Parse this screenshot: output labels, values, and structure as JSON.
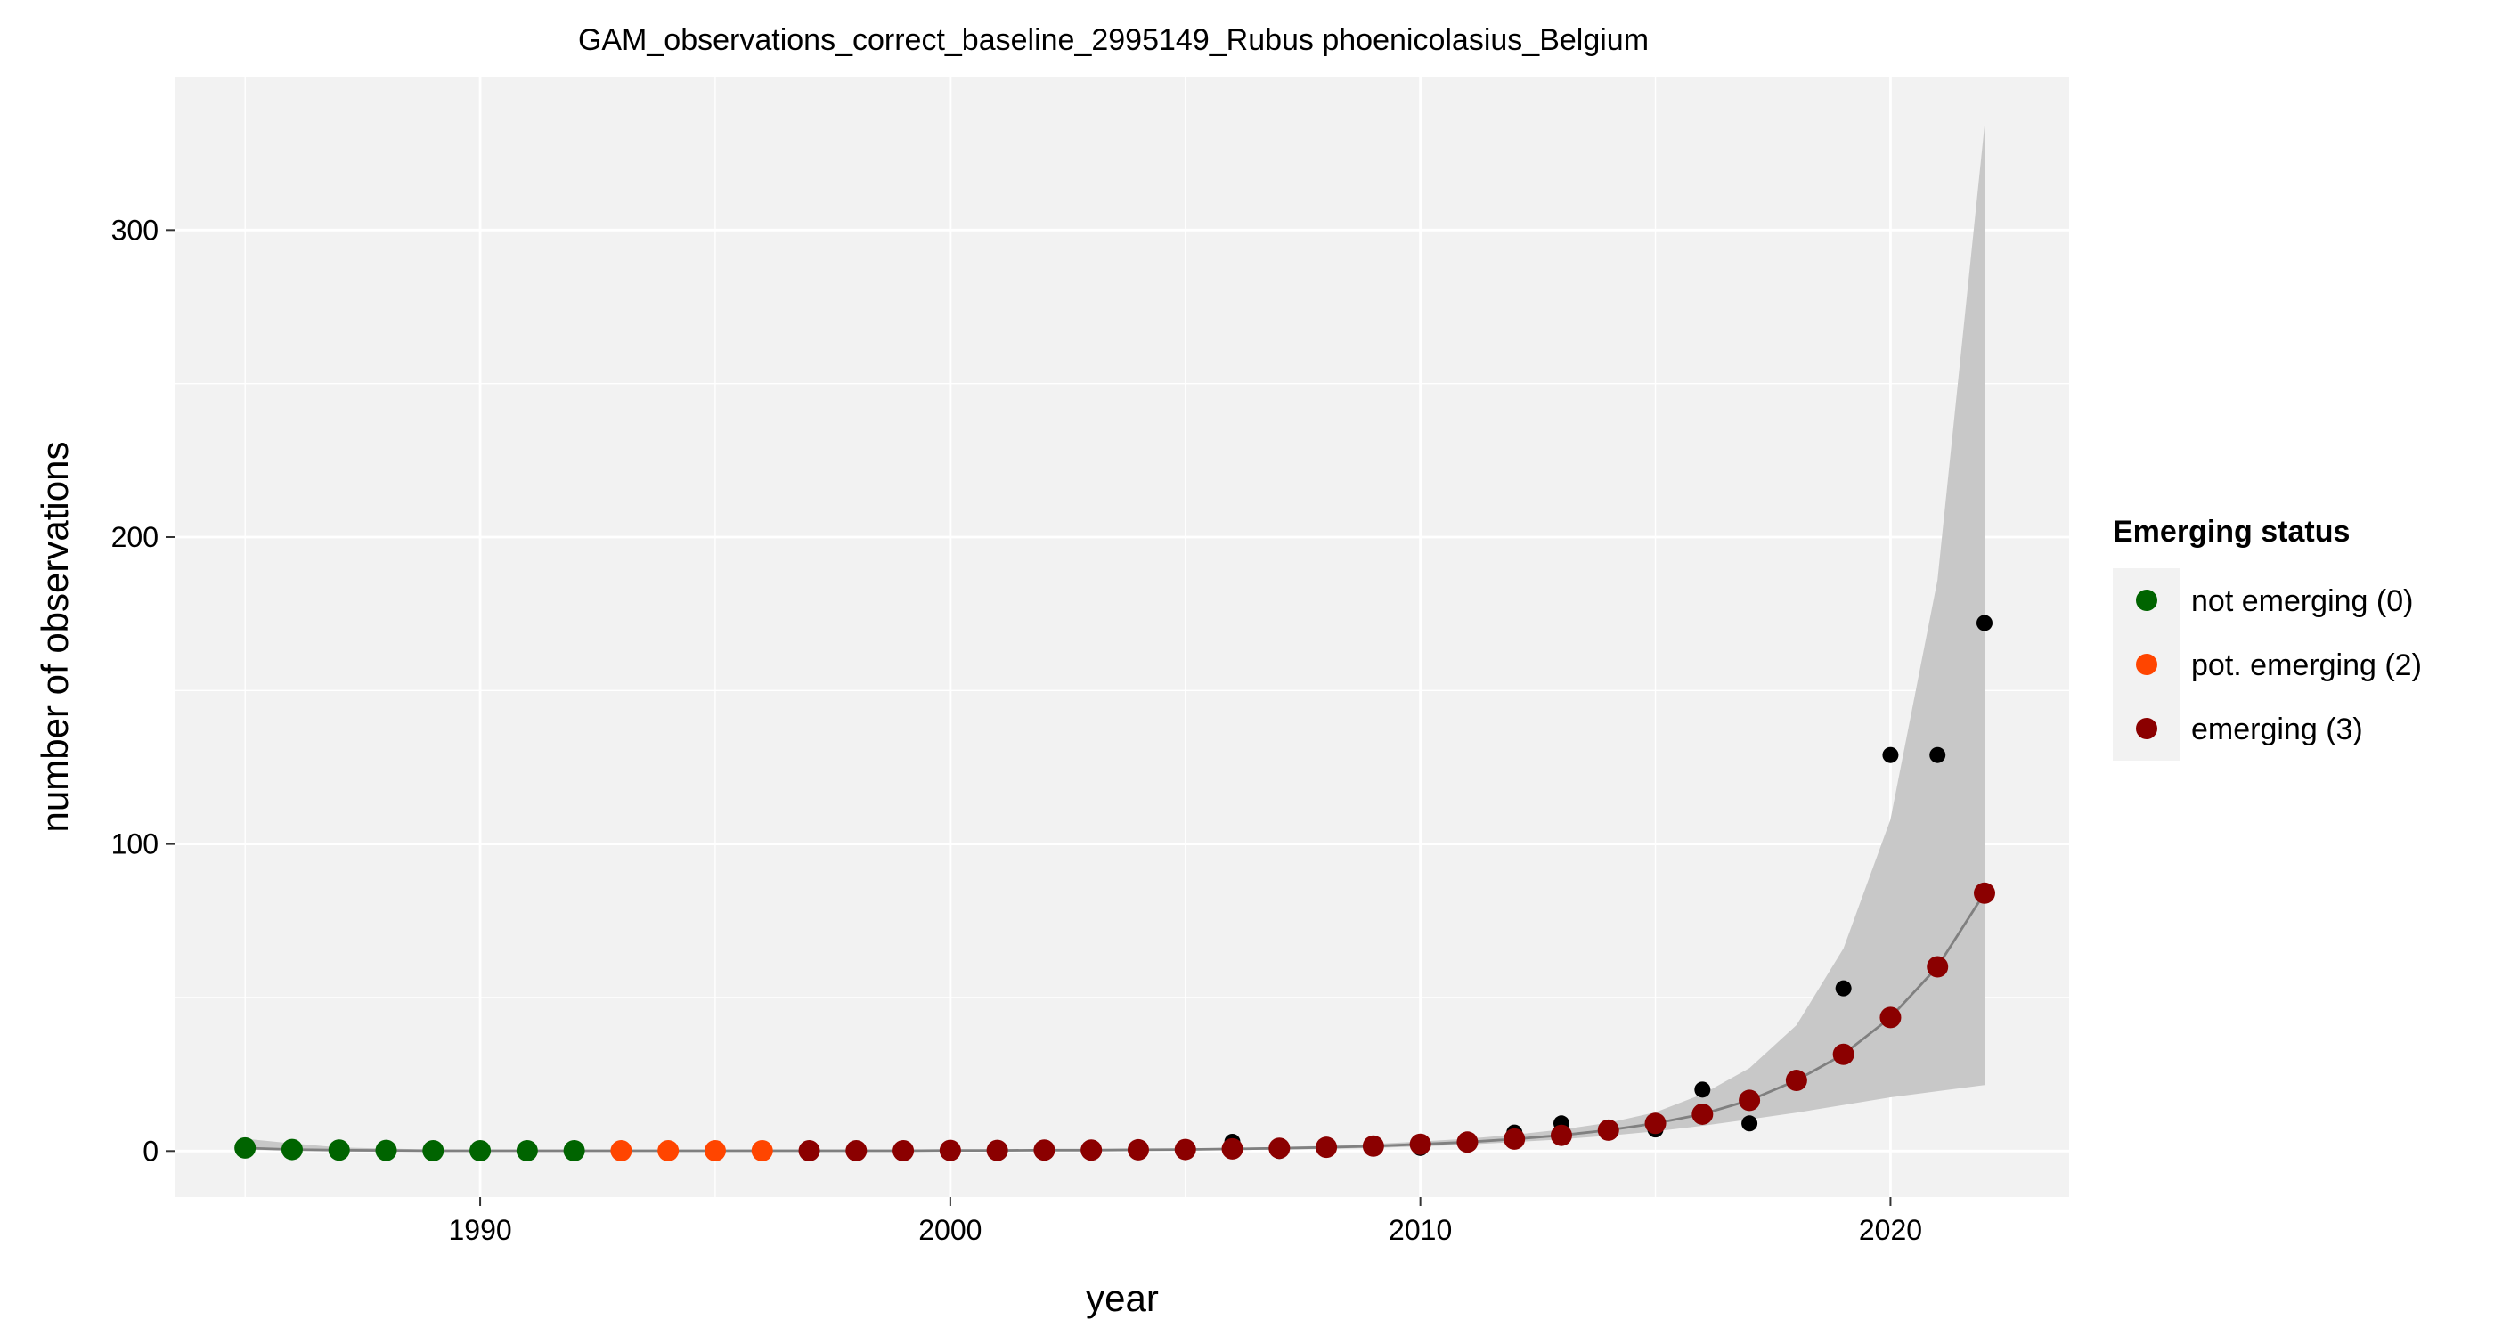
{
  "chart_data": {
    "type": "scatter",
    "title": "GAM_observations_correct_baseline_2995149_Rubus phoenicolasius_Belgium",
    "xlabel": "year",
    "ylabel": "number of observations",
    "xlim": [
      1983.5,
      2023.8
    ],
    "ylim": [
      -15,
      350
    ],
    "x_ticks": [
      1990,
      2000,
      2010,
      2020
    ],
    "y_ticks": [
      0,
      100,
      200,
      300
    ],
    "grid": true,
    "legend_position": "right",
    "legend": {
      "title": "Emerging status",
      "entries": [
        {
          "label": "not emerging (0)",
          "color": "#006400"
        },
        {
          "label": "pot. emerging (2)",
          "color": "#FF4500"
        },
        {
          "label": "emerging (3)",
          "color": "#8B0000"
        }
      ]
    },
    "observed": {
      "color": "#000000",
      "x": [
        1985,
        1986,
        1987,
        1988,
        1989,
        1990,
        1991,
        1992,
        1993,
        1994,
        1995,
        1996,
        1997,
        1998,
        1999,
        2000,
        2001,
        2002,
        2003,
        2004,
        2005,
        2006,
        2007,
        2008,
        2009,
        2010,
        2011,
        2012,
        2013,
        2014,
        2015,
        2016,
        2017,
        2018,
        2019,
        2020,
        2021,
        2022
      ],
      "y": [
        1,
        0,
        0,
        0,
        0,
        0,
        0,
        0,
        0,
        0,
        0,
        0,
        0,
        0,
        0,
        0,
        0,
        0,
        0,
        0,
        0,
        3,
        0,
        1,
        2,
        1,
        3,
        6,
        9,
        7,
        7,
        20,
        9,
        23,
        53,
        129,
        129,
        172
      ]
    },
    "fitted": {
      "line_color": "#808080",
      "ribbon_color": "#C8C8C8",
      "x": [
        1985,
        1986,
        1987,
        1988,
        1989,
        1990,
        1991,
        1992,
        1993,
        1994,
        1995,
        1996,
        1997,
        1998,
        1999,
        2000,
        2001,
        2002,
        2003,
        2004,
        2005,
        2006,
        2007,
        2008,
        2009,
        2010,
        2011,
        2012,
        2013,
        2014,
        2015,
        2016,
        2017,
        2018,
        2019,
        2020,
        2021,
        2022
      ],
      "y": [
        1,
        0.5,
        0.3,
        0.2,
        0.1,
        0.1,
        0.1,
        0.1,
        0.1,
        0.1,
        0.1,
        0.1,
        0.1,
        0.1,
        0.1,
        0.2,
        0.2,
        0.3,
        0.3,
        0.4,
        0.5,
        0.7,
        0.9,
        1.2,
        1.6,
        2.2,
        2.9,
        3.9,
        5.1,
        6.8,
        9,
        12,
        16.5,
        23,
        31.5,
        43.5,
        60,
        84
      ],
      "lower": [
        0.4,
        0.2,
        0.1,
        0,
        0,
        0,
        0,
        0,
        0,
        0,
        0,
        0,
        0,
        0,
        0,
        0,
        0,
        0.1,
        0.1,
        0.1,
        0.2,
        0.3,
        0.5,
        0.7,
        1,
        1.5,
        2.1,
        2.9,
        3.8,
        5,
        6.4,
        8.2,
        10.3,
        12.5,
        15,
        17.5,
        19.5,
        21.5
      ],
      "upper": [
        4,
        2.5,
        1.2,
        0.8,
        0.5,
        0.4,
        0.4,
        0.4,
        0.4,
        0.4,
        0.4,
        0.5,
        0.5,
        0.5,
        0.5,
        0.5,
        0.5,
        0.6,
        0.6,
        0.7,
        0.8,
        1,
        1.3,
        1.7,
        2.3,
        3.1,
        4,
        5.3,
        7,
        9.2,
        12.6,
        18.5,
        27,
        41,
        66,
        108,
        186,
        334
      ]
    },
    "status_series": [
      {
        "name": "not emerging (0)",
        "color": "#006400",
        "x": [
          1985,
          1986,
          1987,
          1988,
          1989,
          1990,
          1991,
          1992
        ]
      },
      {
        "name": "pot. emerging (2)",
        "color": "#FF4500",
        "x": [
          1993,
          1994,
          1995,
          1996
        ]
      },
      {
        "name": "emerging (3)",
        "color": "#8B0000",
        "x": [
          1997,
          1998,
          1999,
          2000,
          2001,
          2002,
          2003,
          2004,
          2005,
          2006,
          2007,
          2008,
          2009,
          2010,
          2011,
          2012,
          2013,
          2014,
          2015,
          2016,
          2017,
          2018,
          2019,
          2020,
          2021,
          2022
        ]
      }
    ]
  }
}
